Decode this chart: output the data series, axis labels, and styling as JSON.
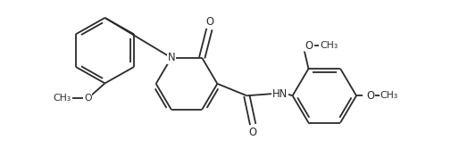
{
  "bg_color": "#ffffff",
  "line_color": "#2a2a2a",
  "line_width": 1.3,
  "font_size": 7.8,
  "figsize": [
    5.05,
    1.85
  ],
  "dpi": 100,
  "xlim": [
    -0.5,
    10.5
  ],
  "ylim": [
    -0.3,
    3.8
  ]
}
